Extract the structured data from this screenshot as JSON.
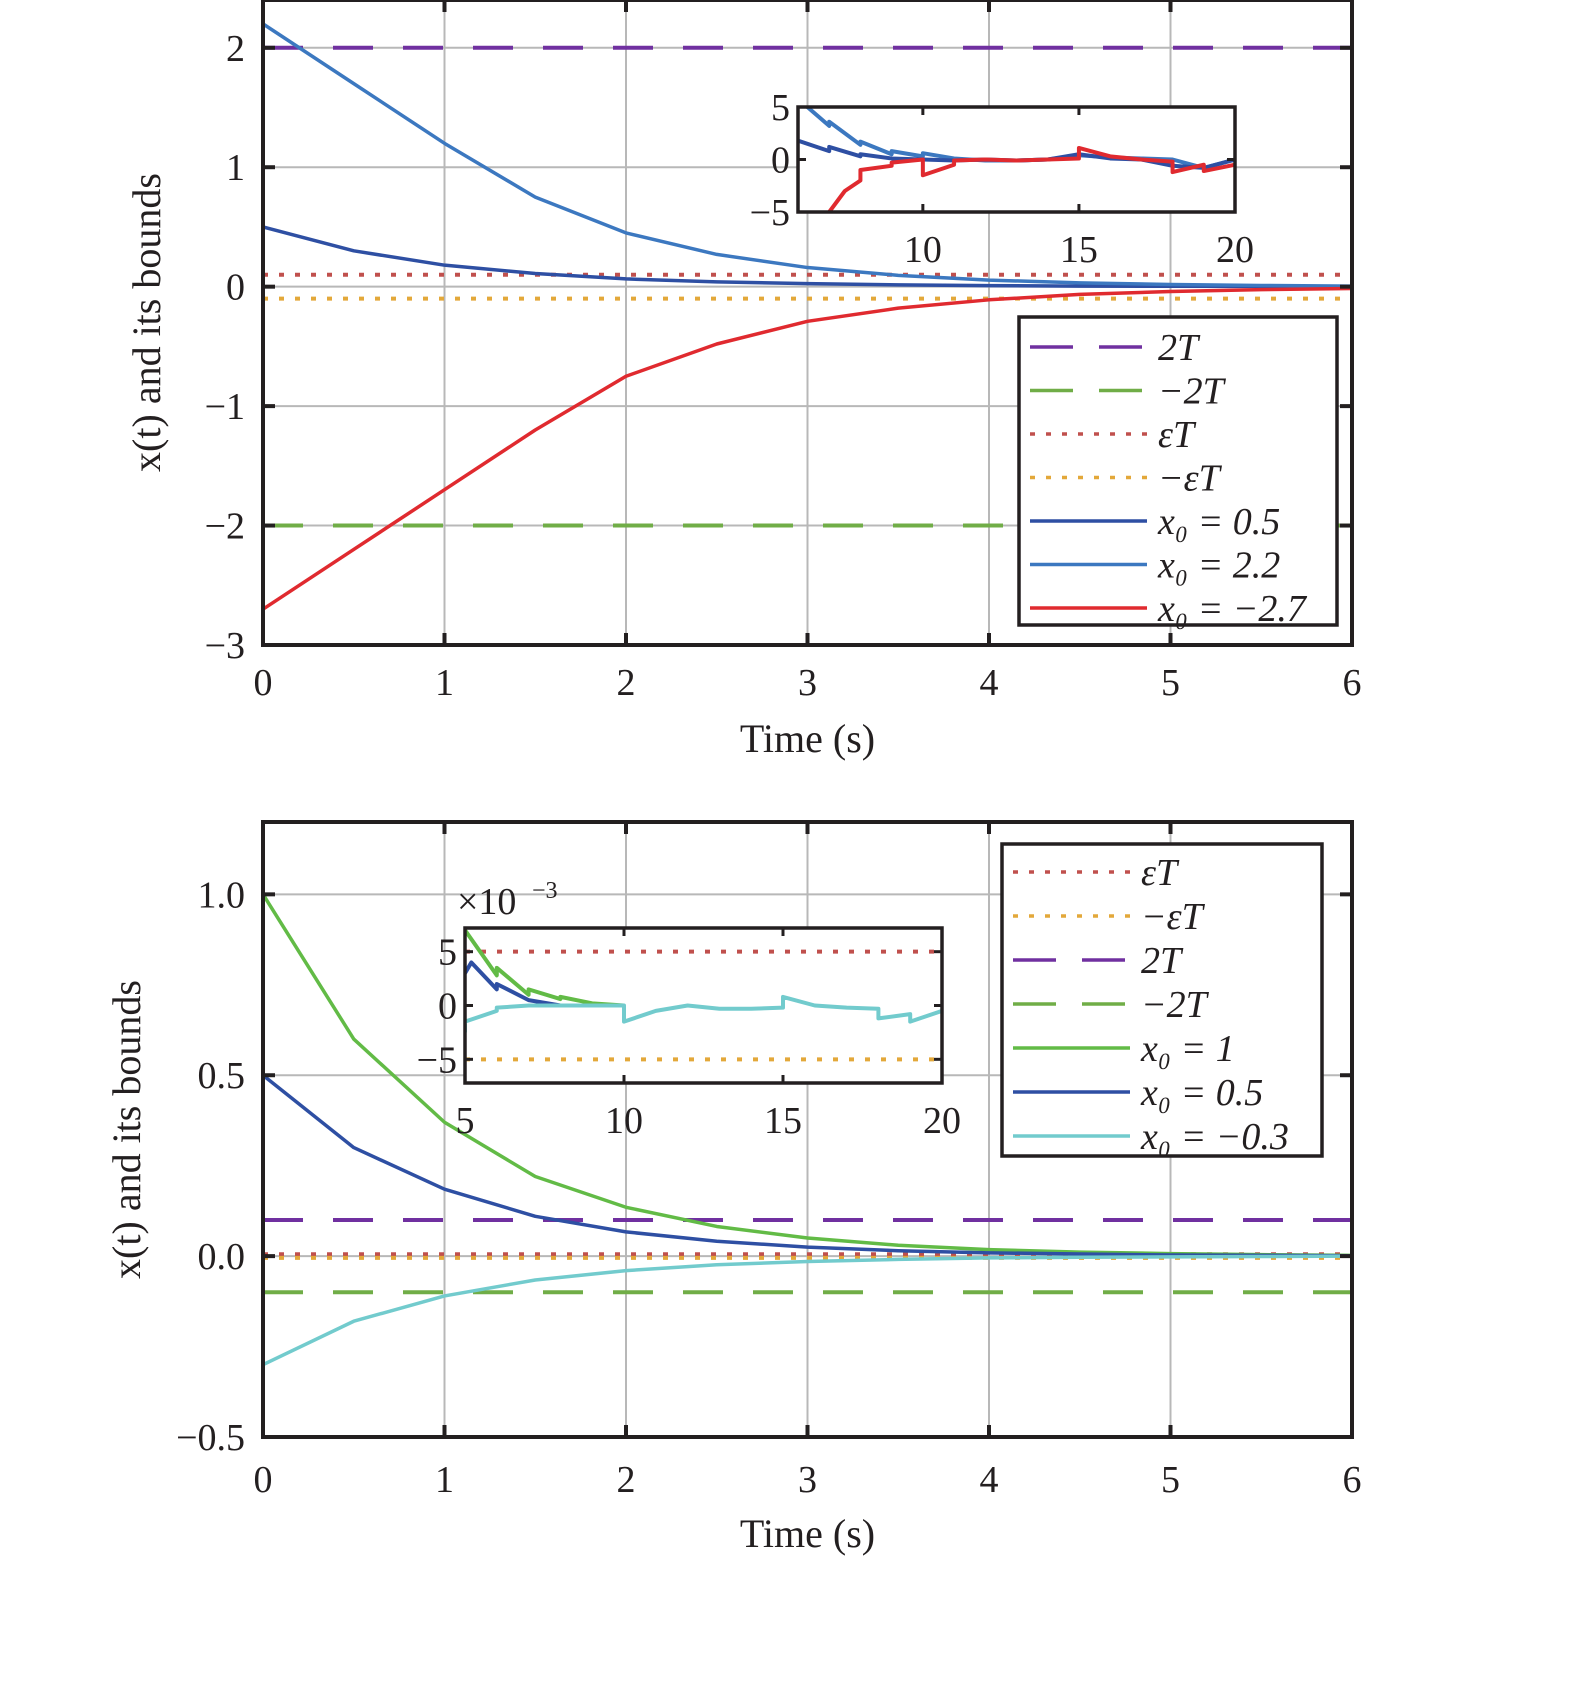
{
  "chart_data": [
    {
      "type": "line",
      "title": "",
      "xlabel": "Time (s)",
      "ylabel": "x(t) and its bounds",
      "xlim": [
        0,
        6
      ],
      "ylim": [
        -3,
        2.4
      ],
      "xticks": [
        0,
        1,
        2,
        3,
        4,
        5,
        6
      ],
      "xtick_labels": [
        "0",
        "1",
        "2",
        "3",
        "4",
        "5",
        "6"
      ],
      "yticks": [
        -3,
        -2,
        -1,
        0,
        1,
        2
      ],
      "ytick_labels": [
        "−3",
        "−2",
        "−1",
        "0",
        "1",
        "2"
      ],
      "grid": true,
      "legend_position": "center-right",
      "bounds": [
        {
          "name": "2T",
          "label": "2T",
          "value": 2.0,
          "style": "dashed",
          "color": "#7030a0"
        },
        {
          "name": "-2T",
          "label": "−2T",
          "value": -2.0,
          "style": "dashed",
          "color": "#70ad47"
        },
        {
          "name": "epsT",
          "label": "εT",
          "value": 0.1,
          "style": "dotted",
          "color": "#c0504d"
        },
        {
          "name": "-epsT",
          "label": "−εT",
          "value": -0.1,
          "style": "dotted",
          "color": "#e3a83a"
        }
      ],
      "series": [
        {
          "name": "x0 = 0.5",
          "label": "x₀ = 0.5",
          "color": "#2e4fa3",
          "x": [
            0,
            0.5,
            1,
            1.5,
            2,
            2.5,
            3,
            3.5,
            4,
            4.5,
            5,
            5.5,
            6
          ],
          "values": [
            0.5,
            0.3,
            0.18,
            0.11,
            0.065,
            0.04,
            0.025,
            0.015,
            0.009,
            0.005,
            0.003,
            0.002,
            0.001
          ]
        },
        {
          "name": "x0 = 2.2",
          "label": "x₀ = 2.2",
          "color": "#3c78c0",
          "x": [
            0,
            0.5,
            1,
            1.5,
            2,
            2.5,
            3,
            3.5,
            4,
            4.5,
            5,
            5.5,
            6
          ],
          "values": [
            2.2,
            1.7,
            1.2,
            0.75,
            0.45,
            0.27,
            0.16,
            0.095,
            0.055,
            0.032,
            0.018,
            0.01,
            0.005
          ]
        },
        {
          "name": "x0 = -2.7",
          "label": "x₀ = −2.7",
          "color": "#e02a2f",
          "x": [
            0,
            0.5,
            1,
            1.5,
            2,
            2.5,
            3,
            3.5,
            4,
            4.5,
            5,
            5.5,
            6
          ],
          "values": [
            -2.7,
            -2.2,
            -1.7,
            -1.2,
            -0.75,
            -0.48,
            -0.29,
            -0.18,
            -0.11,
            -0.065,
            -0.04,
            -0.025,
            -0.015
          ]
        }
      ],
      "inset": {
        "xlim": [
          6,
          20
        ],
        "ylim": [
          -5,
          5
        ],
        "xticks": [
          10,
          15,
          20
        ],
        "xtick_labels": [
          "10",
          "15",
          "20"
        ],
        "yticks": [
          -5,
          0,
          5
        ],
        "ytick_labels": [
          "−5",
          "0",
          "5"
        ],
        "series": [
          {
            "name": "x0 = 2.2",
            "color": "#3c78c0",
            "x": [
              6.3,
              7,
              7,
              8,
              8,
              9,
              9,
              10,
              10,
              11,
              11,
              12,
              13,
              14,
              15,
              16,
              17,
              18,
              19,
              20
            ],
            "values": [
              5,
              3.2,
              3.6,
              1.4,
              1.7,
              0.5,
              0.8,
              0.3,
              0.6,
              0.1,
              0.1,
              -0.1,
              -0.1,
              0,
              0.4,
              0.2,
              0.1,
              0,
              -0.8,
              0
            ]
          },
          {
            "name": "x0 = 0.5",
            "color": "#2e4fa3",
            "x": [
              6,
              7,
              7,
              8,
              8,
              9,
              10,
              11,
              12,
              13,
              14,
              15,
              16,
              17,
              18,
              19,
              20
            ],
            "values": [
              1.8,
              0.8,
              1.2,
              0.3,
              0.5,
              0.1,
              0,
              -0.1,
              0,
              -0.1,
              0,
              0.5,
              0.1,
              0,
              -0.6,
              -0.8,
              0
            ]
          },
          {
            "name": "x0 = -2.7",
            "color": "#e02a2f",
            "x": [
              7,
              7.5,
              8,
              8,
              9,
              9,
              10,
              10,
              11,
              11,
              12,
              13,
              14,
              15,
              15,
              16,
              17,
              18,
              18,
              19,
              19,
              20
            ],
            "values": [
              -5,
              -3,
              -2,
              -1,
              -0.6,
              -0.3,
              0,
              -1.5,
              -0.5,
              -0.1,
              0,
              -0.1,
              0,
              0.1,
              1.1,
              0.3,
              0,
              -0.2,
              -1.2,
              -0.5,
              -1.1,
              -0.5
            ]
          }
        ]
      }
    },
    {
      "type": "line",
      "title": "",
      "xlabel": "Time (s)",
      "ylabel": "x(t) and its bounds",
      "xlim": [
        0,
        6
      ],
      "ylim": [
        -0.5,
        1.2
      ],
      "xticks": [
        0,
        1,
        2,
        3,
        4,
        5,
        6
      ],
      "xtick_labels": [
        "0",
        "1",
        "2",
        "3",
        "4",
        "5",
        "6"
      ],
      "yticks": [
        -0.5,
        0.0,
        0.5,
        1.0
      ],
      "ytick_labels": [
        "−0.5",
        "0.0",
        "0.5",
        "1.0"
      ],
      "grid": true,
      "legend_position": "top-right",
      "bounds": [
        {
          "name": "epsT",
          "label": "εT",
          "value": 0.005,
          "style": "dotted",
          "color": "#c0504d"
        },
        {
          "name": "-epsT",
          "label": "−εT",
          "value": -0.005,
          "style": "dotted",
          "color": "#e3a83a"
        },
        {
          "name": "2T",
          "label": "2T",
          "value": 0.1,
          "style": "dashed",
          "color": "#7030a0"
        },
        {
          "name": "-2T",
          "label": "−2T",
          "value": -0.1,
          "style": "dashed",
          "color": "#70ad47"
        }
      ],
      "series": [
        {
          "name": "x0 = 1",
          "label": "x₀ = 1",
          "color": "#62bb46",
          "x": [
            0,
            0.5,
            1,
            1.5,
            2,
            2.5,
            3,
            3.5,
            4,
            4.5,
            5,
            5.5,
            6
          ],
          "values": [
            1.0,
            0.6,
            0.37,
            0.22,
            0.135,
            0.082,
            0.05,
            0.03,
            0.018,
            0.011,
            0.007,
            0.004,
            0.002
          ]
        },
        {
          "name": "x0 = 0.5",
          "label": "x₀ = 0.5",
          "color": "#2e4fa3",
          "x": [
            0,
            0.5,
            1,
            1.5,
            2,
            2.5,
            3,
            3.5,
            4,
            4.5,
            5,
            5.5,
            6
          ],
          "values": [
            0.5,
            0.3,
            0.185,
            0.11,
            0.067,
            0.041,
            0.025,
            0.015,
            0.009,
            0.006,
            0.003,
            0.002,
            0.001
          ]
        },
        {
          "name": "x0 = -0.3",
          "label": "x₀ = −0.3",
          "color": "#72cbcd",
          "x": [
            0,
            0.5,
            1,
            1.5,
            2,
            2.5,
            3,
            3.5,
            4,
            4.5,
            5,
            5.5,
            6
          ],
          "values": [
            -0.3,
            -0.18,
            -0.11,
            -0.066,
            -0.04,
            -0.024,
            -0.015,
            -0.009,
            -0.005,
            -0.003,
            -0.002,
            -0.001,
            0
          ]
        }
      ],
      "inset": {
        "multiplier_label": "×10",
        "multiplier_exponent": "−3",
        "xlim": [
          5,
          20
        ],
        "ylim": [
          -7.2,
          7.2
        ],
        "xticks": [
          5,
          10,
          15,
          20
        ],
        "xtick_labels": [
          "5",
          "10",
          "15",
          "20"
        ],
        "yticks": [
          -5,
          0,
          5
        ],
        "ytick_labels": [
          "−5",
          "0",
          "5"
        ],
        "bounds": [
          {
            "name": "epsT",
            "value": 5,
            "style": "dotted",
            "color": "#c0504d"
          },
          {
            "name": "-epsT",
            "value": -5,
            "style": "dotted",
            "color": "#e3a83a"
          }
        ],
        "series": [
          {
            "name": "x0 = 1",
            "color": "#62bb46",
            "x": [
              5,
              6,
              6,
              7,
              7,
              8,
              8,
              9,
              10
            ],
            "values": [
              7,
              2.8,
              3.5,
              1.0,
              1.5,
              0.6,
              0.8,
              0.2,
              0
            ]
          },
          {
            "name": "x0 = 0.5",
            "color": "#2e4fa3",
            "x": [
              5,
              5.2,
              6,
              6,
              7,
              8
            ],
            "values": [
              3,
              4,
              1.5,
              2,
              0.5,
              0
            ]
          },
          {
            "name": "x0 = -0.3",
            "color": "#72cbcd",
            "x": [
              5,
              5,
              6,
              6,
              7,
              8,
              9,
              10,
              10,
              11,
              12,
              13,
              14,
              15,
              15,
              16,
              17,
              18,
              18,
              19,
              19,
              20
            ],
            "values": [
              -2.5,
              -1.5,
              -0.5,
              -0.2,
              0,
              0,
              0,
              0,
              -1.5,
              -0.5,
              0,
              -0.3,
              -0.3,
              -0.2,
              0.8,
              0,
              -0.2,
              -0.3,
              -1.2,
              -0.8,
              -1.5,
              -0.5
            ]
          }
        ]
      }
    }
  ]
}
